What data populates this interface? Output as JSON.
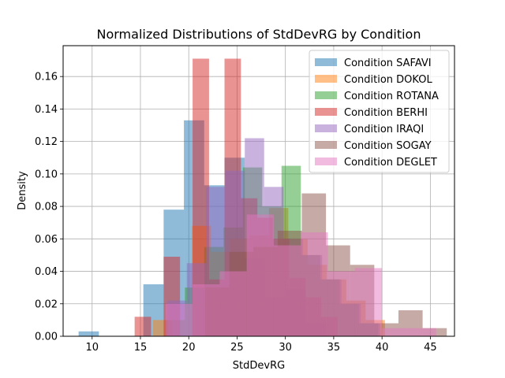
{
  "chart_data": {
    "type": "bar",
    "title": "Normalized Distributions of StdDevRG by Condition",
    "xlabel": "StdDevRG",
    "ylabel": "Density",
    "xlim": [
      7.0,
      47.5
    ],
    "ylim": [
      0,
      0.179
    ],
    "xticks": [
      10,
      15,
      20,
      25,
      30,
      35,
      40,
      45
    ],
    "yticks": [
      0.0,
      0.02,
      0.04,
      0.06,
      0.08,
      0.1,
      0.12,
      0.14,
      0.16
    ],
    "grid": true,
    "legend_position": "top-right",
    "alpha": 0.5,
    "series": [
      {
        "name": "Condition SAFAVI",
        "color": "#1f77b4",
        "bins": [
          {
            "x0": 8.6,
            "x1": 10.7,
            "y": 0.003
          },
          {
            "x0": 15.3,
            "x1": 17.4,
            "y": 0.032
          },
          {
            "x0": 17.4,
            "x1": 19.5,
            "y": 0.078
          },
          {
            "x0": 19.5,
            "x1": 21.6,
            "y": 0.133
          },
          {
            "x0": 21.6,
            "x1": 23.7,
            "y": 0.093
          },
          {
            "x0": 23.7,
            "x1": 25.8,
            "y": 0.11
          },
          {
            "x0": 25.8,
            "x1": 27.9,
            "y": 0.048
          },
          {
            "x0": 27.9,
            "x1": 30.0,
            "y": 0.024
          },
          {
            "x0": 30.0,
            "x1": 32.1,
            "y": 0.029
          },
          {
            "x0": 32.1,
            "x1": 34.2,
            "y": 0.008
          }
        ]
      },
      {
        "name": "Condition DOKOL",
        "color": "#ff7f0e",
        "bins": [
          {
            "x0": 16.3,
            "x1": 18.3,
            "y": 0.01
          },
          {
            "x0": 20.3,
            "x1": 22.3,
            "y": 0.068
          },
          {
            "x0": 22.3,
            "x1": 24.3,
            "y": 0.052
          },
          {
            "x0": 24.3,
            "x1": 26.3,
            "y": 0.06
          },
          {
            "x0": 26.3,
            "x1": 28.3,
            "y": 0.062
          },
          {
            "x0": 28.3,
            "x1": 30.3,
            "y": 0.079
          },
          {
            "x0": 30.3,
            "x1": 32.3,
            "y": 0.06
          },
          {
            "x0": 32.3,
            "x1": 34.3,
            "y": 0.044
          },
          {
            "x0": 34.3,
            "x1": 36.3,
            "y": 0.035
          },
          {
            "x0": 36.3,
            "x1": 38.3,
            "y": 0.022
          },
          {
            "x0": 38.3,
            "x1": 40.3,
            "y": 0.01
          }
        ]
      },
      {
        "name": "Condition ROTANA",
        "color": "#2ca02c",
        "bins": [
          {
            "x0": 17.6,
            "x1": 19.6,
            "y": 0.01
          },
          {
            "x0": 19.6,
            "x1": 21.6,
            "y": 0.03
          },
          {
            "x0": 21.6,
            "x1": 23.6,
            "y": 0.055
          },
          {
            "x0": 23.6,
            "x1": 25.6,
            "y": 0.067
          },
          {
            "x0": 25.6,
            "x1": 27.6,
            "y": 0.104
          },
          {
            "x0": 27.6,
            "x1": 29.6,
            "y": 0.08
          },
          {
            "x0": 29.6,
            "x1": 31.6,
            "y": 0.105
          },
          {
            "x0": 31.6,
            "x1": 33.6,
            "y": 0.05
          },
          {
            "x0": 33.6,
            "x1": 35.6,
            "y": 0.035
          },
          {
            "x0": 35.6,
            "x1": 37.6,
            "y": 0.02
          },
          {
            "x0": 37.6,
            "x1": 39.6,
            "y": 0.008
          }
        ]
      },
      {
        "name": "Condition BERHI",
        "color": "#d62728",
        "bins": [
          {
            "x0": 14.4,
            "x1": 16.1,
            "y": 0.012
          },
          {
            "x0": 17.4,
            "x1": 19.1,
            "y": 0.049
          },
          {
            "x0": 20.4,
            "x1": 22.1,
            "y": 0.171
          },
          {
            "x0": 22.1,
            "x1": 23.7,
            "y": 0.035
          },
          {
            "x0": 23.7,
            "x1": 25.4,
            "y": 0.171
          },
          {
            "x0": 25.4,
            "x1": 27.1,
            "y": 0.085
          },
          {
            "x0": 27.1,
            "x1": 28.7,
            "y": 0.073
          },
          {
            "x0": 28.7,
            "x1": 30.4,
            "y": 0.06
          },
          {
            "x0": 30.4,
            "x1": 32.1,
            "y": 0.036
          },
          {
            "x0": 32.1,
            "x1": 33.7,
            "y": 0.024
          },
          {
            "x0": 33.7,
            "x1": 35.4,
            "y": 0.012
          }
        ]
      },
      {
        "name": "Condition IRAQI",
        "color": "#9467bd",
        "bins": [
          {
            "x0": 17.8,
            "x1": 19.8,
            "y": 0.022
          },
          {
            "x0": 19.8,
            "x1": 21.8,
            "y": 0.045
          },
          {
            "x0": 21.8,
            "x1": 23.8,
            "y": 0.092
          },
          {
            "x0": 23.8,
            "x1": 25.8,
            "y": 0.102
          },
          {
            "x0": 25.8,
            "x1": 27.8,
            "y": 0.122
          },
          {
            "x0": 27.8,
            "x1": 29.8,
            "y": 0.092
          },
          {
            "x0": 29.8,
            "x1": 31.8,
            "y": 0.06
          },
          {
            "x0": 31.8,
            "x1": 33.8,
            "y": 0.05
          },
          {
            "x0": 33.8,
            "x1": 35.8,
            "y": 0.035
          },
          {
            "x0": 35.8,
            "x1": 37.8,
            "y": 0.02
          },
          {
            "x0": 37.8,
            "x1": 39.8,
            "y": 0.008
          }
        ]
      },
      {
        "name": "Condition SOGAY",
        "color": "#8c564b",
        "bins": [
          {
            "x0": 21.7,
            "x1": 24.2,
            "y": 0.03
          },
          {
            "x0": 24.2,
            "x1": 26.7,
            "y": 0.052
          },
          {
            "x0": 26.7,
            "x1": 29.2,
            "y": 0.055
          },
          {
            "x0": 29.2,
            "x1": 31.7,
            "y": 0.065
          },
          {
            "x0": 31.7,
            "x1": 34.2,
            "y": 0.088
          },
          {
            "x0": 34.2,
            "x1": 36.7,
            "y": 0.056
          },
          {
            "x0": 36.7,
            "x1": 39.2,
            "y": 0.044
          },
          {
            "x0": 39.2,
            "x1": 41.7,
            "y": 0.008
          },
          {
            "x0": 41.7,
            "x1": 44.2,
            "y": 0.016
          },
          {
            "x0": 44.2,
            "x1": 46.7,
            "y": 0.005
          }
        ]
      },
      {
        "name": "Condition DEGLET",
        "color": "#e377c2",
        "bins": [
          {
            "x0": 17.6,
            "x1": 20.4,
            "y": 0.02
          },
          {
            "x0": 20.4,
            "x1": 23.2,
            "y": 0.032
          },
          {
            "x0": 23.2,
            "x1": 26.0,
            "y": 0.04
          },
          {
            "x0": 26.0,
            "x1": 28.8,
            "y": 0.075
          },
          {
            "x0": 28.8,
            "x1": 31.6,
            "y": 0.056
          },
          {
            "x0": 31.6,
            "x1": 34.4,
            "y": 0.064
          },
          {
            "x0": 34.4,
            "x1": 37.2,
            "y": 0.04
          },
          {
            "x0": 37.2,
            "x1": 40.0,
            "y": 0.042
          },
          {
            "x0": 40.0,
            "x1": 42.8,
            "y": 0.005
          },
          {
            "x0": 42.8,
            "x1": 45.6,
            "y": 0.005
          }
        ]
      }
    ]
  }
}
